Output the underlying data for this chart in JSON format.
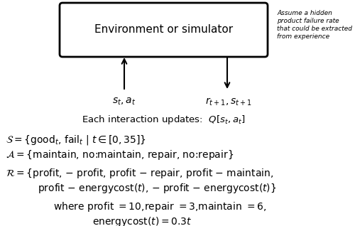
{
  "box_text": "Environment or simulator",
  "note_text": "Assume a hidden\nproduct failure rate\nthat could be extracted\nfrom experience",
  "label_left": "$s_t, a_t$",
  "label_right": "$r_{t+1}, s_{t+1}$",
  "update_text": "Each interaction updates:  $Q[s_t, a_t]$",
  "background_color": "#ffffff"
}
